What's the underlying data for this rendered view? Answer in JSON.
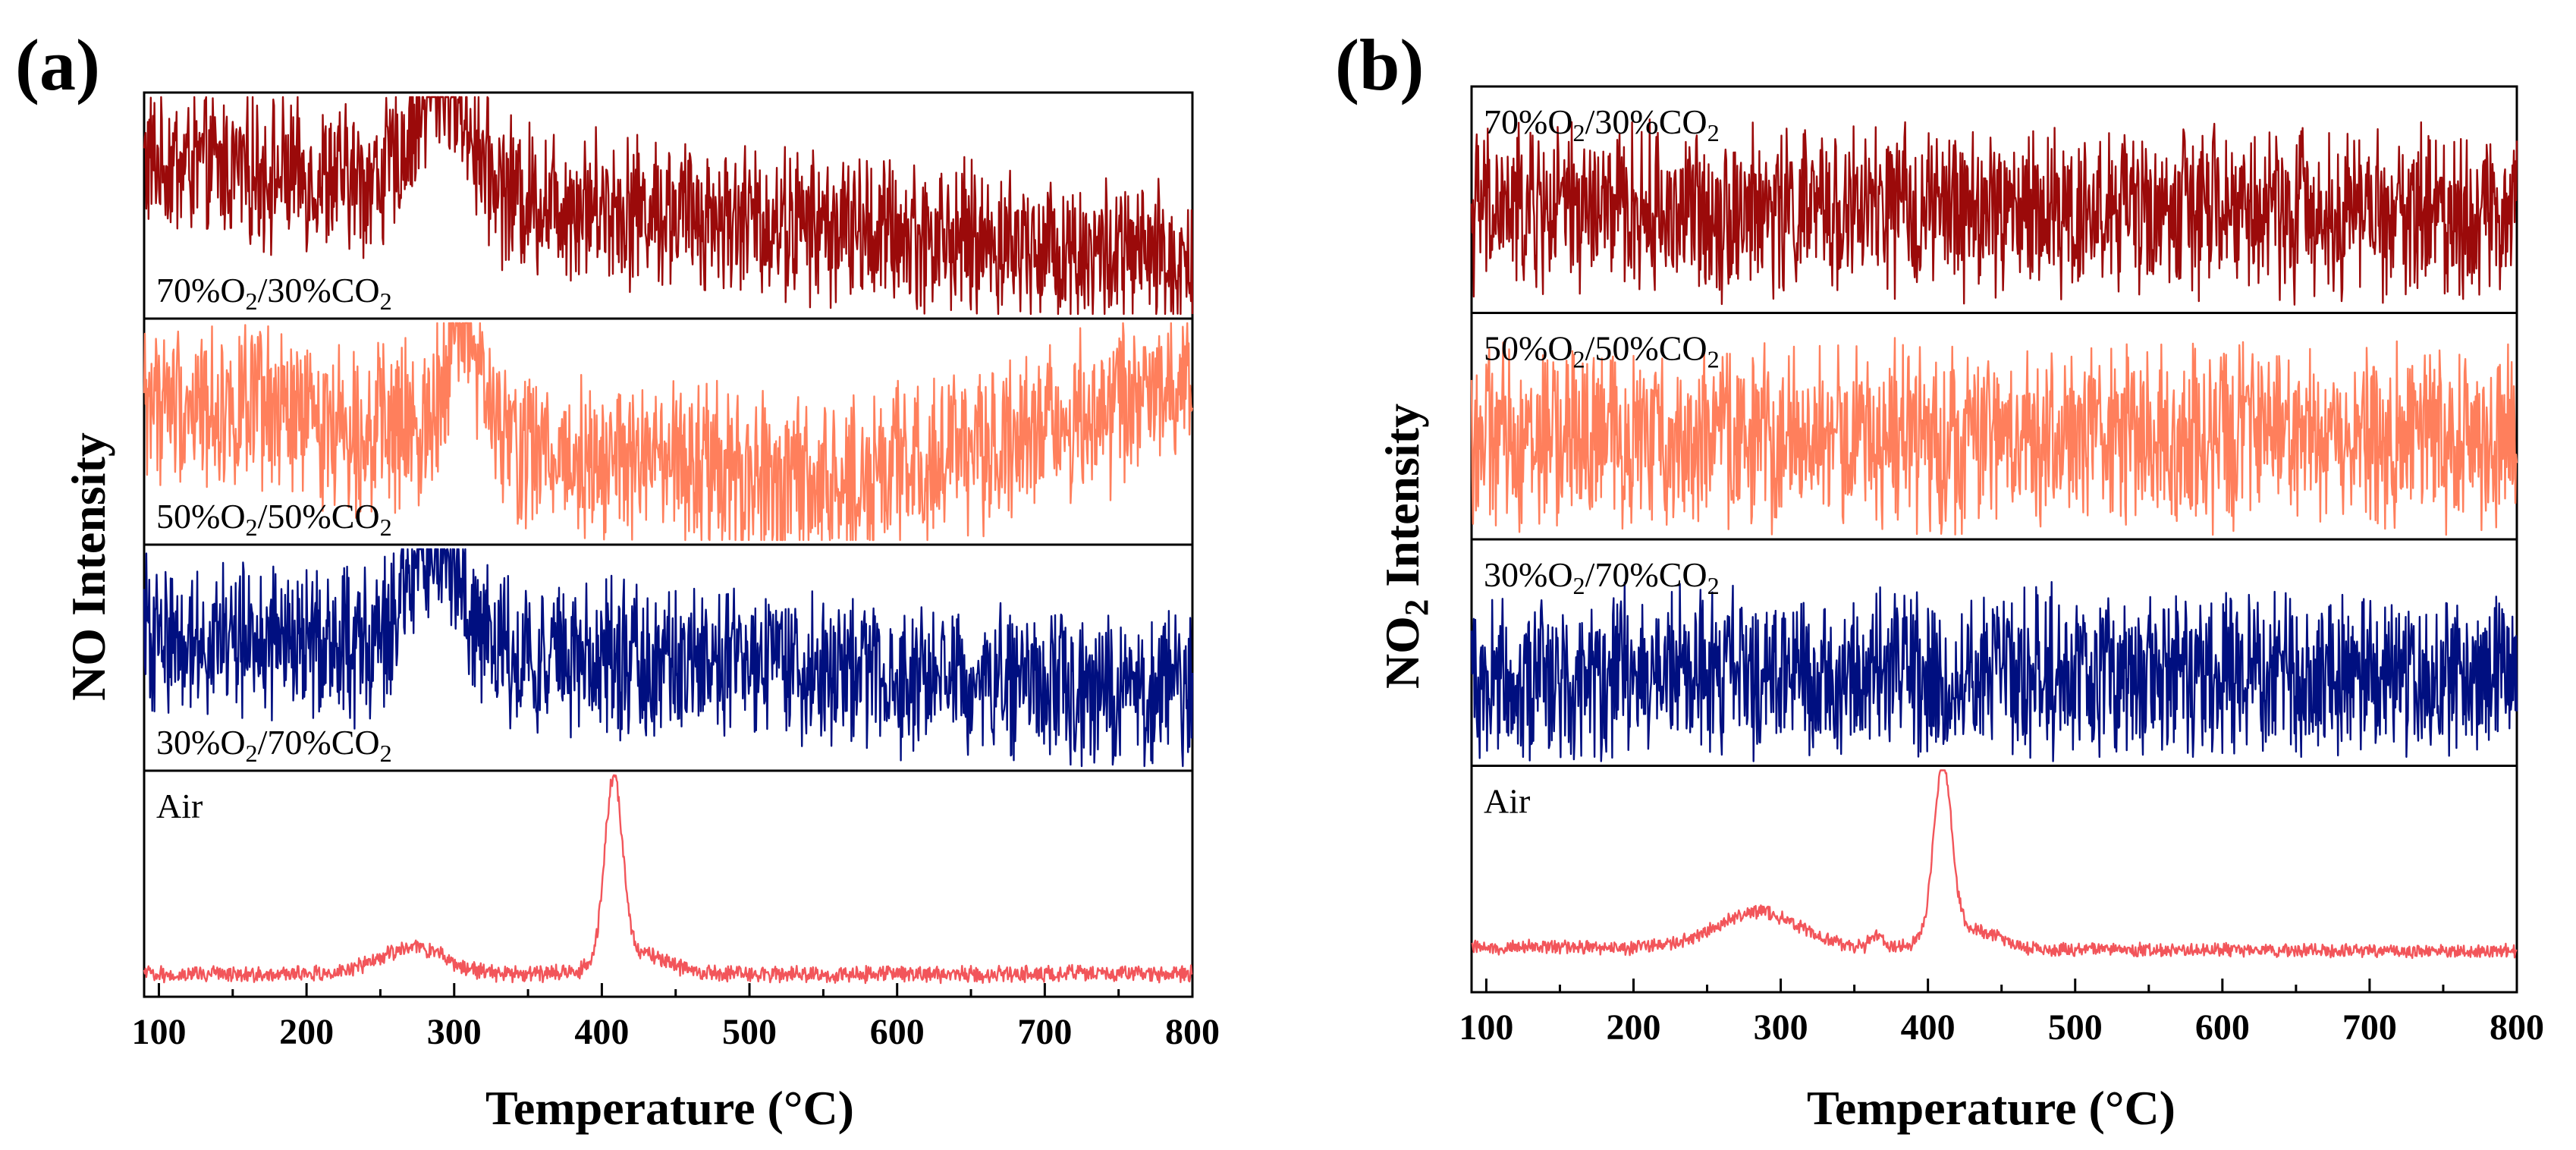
{
  "chart_data": [
    {
      "type": "line",
      "panel_label": "(a)",
      "xlabel": "Temperature (°C)",
      "ylabel": "NO Intensity",
      "xlim": [
        90,
        800
      ],
      "xticks": [
        100,
        200,
        300,
        400,
        500,
        600,
        700,
        800
      ],
      "y_ticks_shown": false,
      "grid": false,
      "legend": "none",
      "layout": "stacked",
      "series": [
        {
          "name": "70%O₂/30%CO₂",
          "label_text": {
            "pre": "70%O",
            "sub1": "2",
            "mid": "/30%CO",
            "sub2": "2"
          },
          "color": "#9b0a0a",
          "baseline": 0.45,
          "noise": 0.55,
          "features": [
            {
              "x": 292,
              "height": 0.5,
              "width": 18
            }
          ],
          "trend": [
            [
              90,
              0.7
            ],
            [
              800,
              0.25
            ]
          ],
          "label_pos": "bottom-left"
        },
        {
          "name": "50%O₂/50%CO₂",
          "label_text": {
            "pre": "50%O",
            "sub1": "2",
            "mid": "/50%CO",
            "sub2": "2"
          },
          "color": "#ff7f5c",
          "baseline": 0.5,
          "noise": 0.6,
          "features": [
            {
              "x": 305,
              "height": 0.55,
              "width": 12
            }
          ],
          "trend": [
            [
              90,
              0.65
            ],
            [
              550,
              0.25
            ],
            [
              800,
              0.7
            ]
          ],
          "label_pos": "bottom-left"
        },
        {
          "name": "30%O₂/70%CO₂",
          "label_text": {
            "pre": "30%O",
            "sub1": "2",
            "mid": "/70%CO",
            "sub2": "2"
          },
          "color": "#000f80",
          "baseline": 0.45,
          "noise": 0.55,
          "features": [
            {
              "x": 288,
              "height": 0.45,
              "width": 18
            }
          ],
          "trend": [
            [
              90,
              0.6
            ],
            [
              800,
              0.35
            ]
          ],
          "label_pos": "bottom-left"
        },
        {
          "name": "Air",
          "label_text": {
            "pre": "Air",
            "sub1": "",
            "mid": "",
            "sub2": ""
          },
          "color": "#f2555a",
          "baseline": 0.1,
          "noise": 0.06,
          "features": [
            {
              "x": 272,
              "height": 0.12,
              "width": 22
            },
            {
              "x": 408,
              "height": 0.8,
              "width": 6
            },
            {
              "x": 422,
              "height": 0.1,
              "width": 20
            }
          ],
          "trend": [
            [
              90,
              0.1
            ],
            [
              800,
              0.1
            ]
          ],
          "label_pos": "top-left"
        }
      ]
    },
    {
      "type": "line",
      "panel_label": "(b)",
      "xlabel": "Temperature (°C)",
      "ylabel": "NO₂ Intensity",
      "ylabel_text": {
        "pre": "NO",
        "sub": "2",
        "post": " Intensity"
      },
      "xlim": [
        90,
        800
      ],
      "xticks": [
        100,
        200,
        300,
        400,
        500,
        600,
        700,
        800
      ],
      "y_ticks_shown": false,
      "grid": false,
      "legend": "none",
      "layout": "stacked",
      "series": [
        {
          "name": "70%O₂/30%CO₂",
          "label_text": {
            "pre": "70%O",
            "sub1": "2",
            "mid": "/30%CO",
            "sub2": "2"
          },
          "color": "#9b0a0a",
          "baseline": 0.45,
          "noise": 0.6,
          "features": [],
          "trend": [
            [
              90,
              0.45
            ],
            [
              800,
              0.45
            ]
          ],
          "label_pos": "top-left"
        },
        {
          "name": "50%O₂/50%CO₂",
          "label_text": {
            "pre": "50%O",
            "sub1": "2",
            "mid": "/50%CO",
            "sub2": "2"
          },
          "color": "#ff7f5c",
          "baseline": 0.45,
          "noise": 0.65,
          "features": [],
          "trend": [
            [
              90,
              0.45
            ],
            [
              800,
              0.45
            ]
          ],
          "label_pos": "top-left"
        },
        {
          "name": "30%O₂/70%CO₂",
          "label_text": {
            "pre": "30%O",
            "sub1": "2",
            "mid": "/70%CO",
            "sub2": "2"
          },
          "color": "#000f80",
          "baseline": 0.4,
          "noise": 0.6,
          "features": [],
          "trend": [
            [
              90,
              0.4
            ],
            [
              800,
              0.4
            ]
          ],
          "label_pos": "top-left"
        },
        {
          "name": "Air",
          "label_text": {
            "pre": "Air",
            "sub1": "",
            "mid": "",
            "sub2": ""
          },
          "color": "#f2555a",
          "baseline": 0.2,
          "noise": 0.05,
          "features": [
            {
              "x": 285,
              "height": 0.16,
              "width": 28
            },
            {
              "x": 365,
              "height": 0.06,
              "width": 4
            },
            {
              "x": 410,
              "height": 0.75,
              "width": 6
            },
            {
              "x": 425,
              "height": 0.1,
              "width": 20
            }
          ],
          "trend": [
            [
              90,
              0.2
            ],
            [
              800,
              0.18
            ]
          ],
          "label_pos": "top-left"
        }
      ]
    }
  ]
}
